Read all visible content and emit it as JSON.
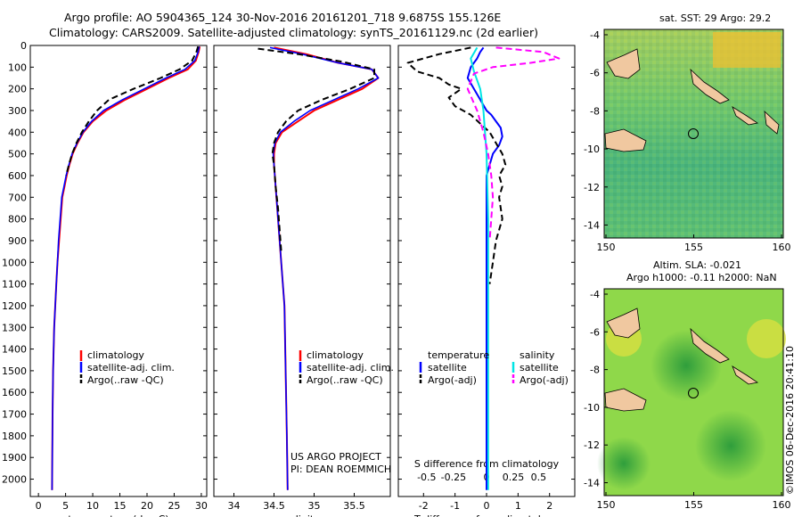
{
  "header": {
    "line1": "Argo profile: AO 5904365_124 30-Nov-2016 20161201_718 9.6875S 155.126E",
    "line2": "Climatology: CARS2009. Satellite-adjusted climatology: synTS_20161129.nc (2d earlier)"
  },
  "credit": "©IMOS 06-Dec-2016 20:41:10",
  "project": {
    "line1": "US ARGO PROJECT",
    "line2": "PI: DEAN ROEMMICH"
  },
  "colors": {
    "climatology": "#ff0000",
    "satellite": "#0000ff",
    "argo": "#000000",
    "sal_satellite": "#00e5e5",
    "sal_argo": "#ff00ff",
    "land": "#f0c8a0"
  },
  "depth_axis": {
    "ticks": [
      0,
      100,
      200,
      300,
      400,
      500,
      600,
      700,
      800,
      900,
      1000,
      1100,
      1200,
      1300,
      1400,
      1500,
      1600,
      1700,
      1800,
      1900,
      2000
    ],
    "ylim": [
      0,
      2080
    ]
  },
  "chart_data": [
    {
      "type": "line",
      "xlabel": "temperature (deg C)",
      "xlim": [
        -1.5,
        31
      ],
      "xticks": [
        0,
        5,
        10,
        15,
        20,
        25,
        30
      ],
      "legend": [
        "climatology",
        "satellite-adj. clim.",
        "Argo(..raw -QC)"
      ],
      "series": [
        {
          "name": "climatology",
          "x": [
            29.7,
            29.5,
            29,
            27.5,
            24,
            20,
            16,
            12.5,
            10,
            8.3,
            7.2,
            6.3,
            5.7,
            5.2,
            4.8,
            4.4,
            4.1,
            3.8,
            3.5,
            3.3,
            3.1,
            2.9,
            2.8,
            2.7,
            2.6,
            2.5
          ],
          "y": [
            5,
            30,
            70,
            110,
            150,
            200,
            250,
            300,
            350,
            400,
            450,
            500,
            550,
            600,
            650,
            700,
            800,
            900,
            1000,
            1100,
            1200,
            1300,
            1400,
            1500,
            1700,
            2050
          ]
        },
        {
          "name": "satellite-adj. clim.",
          "x": [
            29.6,
            29.4,
            28.8,
            27,
            23.5,
            19.5,
            15.5,
            12,
            9.8,
            8.2,
            7.1,
            6.2,
            5.6,
            5.1,
            4.7,
            4.3,
            4,
            3.7,
            3.5,
            3.3,
            3.1,
            2.9,
            2.8,
            2.7,
            2.6,
            2.5
          ],
          "y": [
            5,
            30,
            70,
            110,
            150,
            200,
            250,
            300,
            350,
            400,
            450,
            500,
            550,
            600,
            650,
            700,
            800,
            900,
            1000,
            1100,
            1200,
            1300,
            1400,
            1500,
            1700,
            2050
          ]
        },
        {
          "name": "Argo(..raw -QC)",
          "x": [
            29.4,
            29.1,
            28.3,
            26,
            22.5,
            17.5,
            13,
            10.8,
            9.3,
            8,
            7,
            6.2,
            5.6,
            5.1
          ],
          "y": [
            5,
            30,
            70,
            110,
            150,
            200,
            250,
            300,
            350,
            400,
            450,
            500,
            550,
            600
          ]
        }
      ]
    },
    {
      "type": "line",
      "xlabel": "salinity",
      "xlim": [
        33.75,
        35.95
      ],
      "xticks": [
        34,
        34.5,
        35,
        35.5
      ],
      "legend": [
        "climatology",
        "satellite-adj. clim.",
        "Argo(..raw -QC)"
      ],
      "series": [
        {
          "name": "climatology",
          "x": [
            34.5,
            34.9,
            35.3,
            35.72,
            35.8,
            35.6,
            35.3,
            35.0,
            34.8,
            34.6,
            34.52,
            34.5,
            34.5,
            34.51,
            34.53,
            34.55,
            34.57,
            34.59,
            34.61,
            34.63,
            34.64,
            34.65,
            34.66,
            34.67
          ],
          "y": [
            10,
            40,
            80,
            110,
            150,
            200,
            250,
            300,
            350,
            400,
            450,
            500,
            550,
            600,
            700,
            800,
            900,
            1000,
            1100,
            1200,
            1400,
            1600,
            1800,
            2050
          ]
        },
        {
          "name": "satellite-adj. clim.",
          "x": [
            34.45,
            34.85,
            35.3,
            35.72,
            35.8,
            35.55,
            35.25,
            34.95,
            34.75,
            34.58,
            34.51,
            34.49,
            34.5,
            34.51,
            34.53,
            34.55,
            34.57,
            34.59,
            34.61,
            34.63,
            34.64,
            34.65,
            34.66,
            34.67
          ],
          "y": [
            10,
            40,
            80,
            110,
            150,
            200,
            250,
            300,
            350,
            400,
            450,
            500,
            550,
            600,
            700,
            800,
            900,
            1000,
            1100,
            1200,
            1400,
            1600,
            1800,
            2050
          ]
        },
        {
          "name": "Argo(..raw -QC)",
          "x": [
            34.3,
            34.8,
            35.35,
            35.75,
            35.75,
            35.45,
            35.1,
            34.8,
            34.65,
            34.55,
            34.5,
            34.48,
            34.5,
            34.52,
            34.55,
            34.57,
            34.59
          ],
          "y": [
            15,
            40,
            75,
            110,
            150,
            200,
            250,
            300,
            350,
            400,
            450,
            500,
            550,
            650,
            750,
            850,
            950
          ]
        }
      ]
    },
    {
      "type": "line",
      "xlabel": "T difference from climatology",
      "title": "S difference from climatology",
      "xlim": [
        -2.8,
        2.8
      ],
      "xticks": [
        -2,
        -1,
        0,
        1,
        2
      ],
      "top_ticks": [
        "-0.5",
        "-0.25",
        "0",
        "0.25",
        "0.5"
      ],
      "legend_titles": [
        "temperature",
        "salinity"
      ],
      "legend": [
        "satellite",
        "Argo(-adj)",
        "satellite",
        "Argo(-adj)"
      ],
      "series": [
        {
          "name": "satellite",
          "x": [
            -0.1,
            -0.2,
            -0.3,
            -0.5,
            -0.6,
            -0.4,
            -0.2,
            0,
            0.15,
            0.3,
            0.45,
            0.5,
            0.4,
            0.2,
            0.1,
            0,
            0,
            0,
            0,
            0
          ],
          "y": [
            10,
            30,
            60,
            100,
            150,
            200,
            250,
            300,
            320,
            350,
            380,
            420,
            460,
            500,
            550,
            600,
            800,
            1200,
            1600,
            2050
          ]
        },
        {
          "name": "Argo(-adj)",
          "x": [
            -0.5,
            -1.5,
            -2.5,
            -2.2,
            -1.5,
            -1.2,
            -0.8,
            -1.2,
            -1.0,
            -0.5,
            -0.2,
            0.1,
            0.3,
            0.5,
            0.6,
            0.4,
            0.5,
            0.4,
            0.5,
            0.3,
            0.2,
            0.1
          ],
          "y": [
            10,
            40,
            80,
            120,
            150,
            180,
            200,
            240,
            280,
            320,
            360,
            400,
            450,
            500,
            550,
            600,
            650,
            700,
            800,
            900,
            1000,
            1100
          ]
        },
        {
          "name": "satellite",
          "x": [
            -0.3,
            -0.5,
            -0.4,
            -0.2,
            -0.1,
            0,
            0.05,
            0.05,
            0.05
          ],
          "y": [
            10,
            60,
            120,
            200,
            300,
            500,
            800,
            1400,
            2050
          ]
        },
        {
          "name": "Argo(-adj)",
          "x": [
            0.3,
            1.8,
            2.3,
            1.4,
            0.2,
            -0.4,
            -0.6,
            -0.3,
            -0.1,
            0.05,
            0.15,
            0.2,
            0.15,
            0.1
          ],
          "y": [
            10,
            30,
            60,
            80,
            100,
            130,
            200,
            300,
            400,
            500,
            600,
            700,
            800,
            900
          ]
        }
      ]
    }
  ],
  "maps": {
    "sst": {
      "title": "sat. SST: 29 Argo: 29.2",
      "yticks": [
        "-4",
        "-6",
        "-8",
        "-10",
        "-12",
        "-14"
      ],
      "xticks": [
        "150",
        "155",
        "160"
      ]
    },
    "sla": {
      "title1": "Altim. SLA: -0.021",
      "title2": "Argo h1000: -0.11 h2000: NaN",
      "yticks": [
        "-4",
        "-6",
        "-8",
        "-10",
        "-12",
        "-14"
      ],
      "xticks": [
        "150",
        "155",
        "160"
      ]
    }
  }
}
